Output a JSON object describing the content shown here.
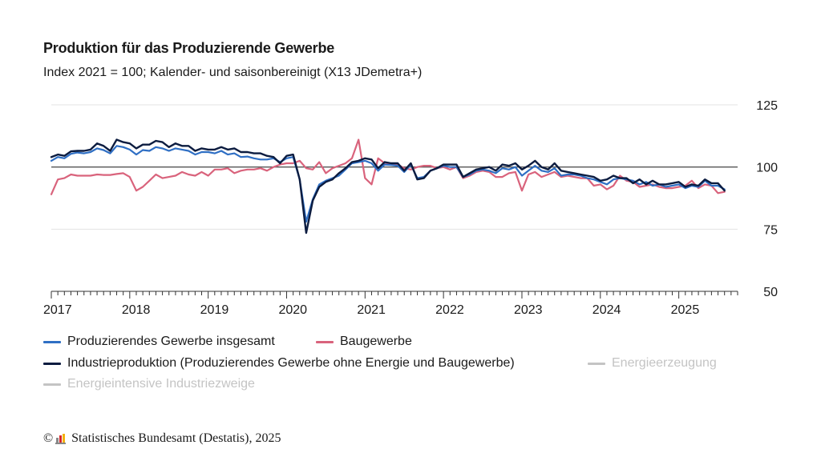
{
  "chart_data": {
    "type": "line",
    "title": "Produktion für das Produzierende Gewerbe",
    "subtitle": "Index 2021 = 100; Kalender- und saisonbereinigt (X13 JDemetra+)",
    "ylim": [
      50,
      125
    ],
    "yticks": [
      50,
      75,
      100,
      125
    ],
    "xticks": [
      "2017",
      "2018",
      "2019",
      "2020",
      "2021",
      "2022",
      "2023",
      "2024",
      "2025"
    ],
    "x_start": "2017-01",
    "reference_line": 100,
    "legend_position": "bottom",
    "series": [
      {
        "name": "Produzierendes Gewerbe insgesamt",
        "color": "#2f6fc4",
        "values": [
          102.5,
          104.0,
          103.5,
          105.3,
          105.8,
          105.5,
          106.0,
          107.5,
          106.8,
          105.5,
          108.5,
          108.0,
          107.0,
          105.0,
          106.8,
          106.5,
          108.0,
          107.5,
          106.5,
          107.5,
          107.0,
          106.5,
          105.0,
          106.0,
          106.0,
          105.5,
          106.5,
          105.0,
          105.5,
          104.0,
          104.2,
          103.5,
          103.0,
          103.0,
          103.5,
          102.0,
          103.5,
          104.0,
          95.0,
          78.0,
          87.0,
          93.0,
          94.5,
          95.5,
          96.5,
          99.0,
          101.5,
          102.0,
          102.5,
          101.5,
          98.5,
          101.0,
          100.8,
          100.5,
          98.0,
          101.0,
          95.5,
          96.0,
          98.5,
          99.5,
          100.5,
          100.0,
          100.0,
          96.0,
          97.0,
          98.5,
          99.0,
          98.5,
          97.5,
          99.5,
          99.0,
          100.0,
          96.5,
          98.5,
          100.5,
          98.5,
          98.0,
          99.5,
          96.5,
          97.0,
          97.0,
          96.5,
          95.5,
          95.0,
          94.0,
          93.0,
          95.0,
          95.5,
          95.0,
          94.5,
          93.0,
          94.0,
          92.5,
          93.0,
          92.0,
          92.5,
          93.0,
          91.5,
          92.5,
          92.0,
          94.5,
          92.5,
          92.5,
          91.0
        ]
      },
      {
        "name": "Baugewerbe",
        "color": "#d9637c",
        "values": [
          89.0,
          95.0,
          95.5,
          97.0,
          96.5,
          96.5,
          96.5,
          97.0,
          96.8,
          96.8,
          97.2,
          97.5,
          96.0,
          90.5,
          92.0,
          94.5,
          97.0,
          95.5,
          96.0,
          96.5,
          98.0,
          97.0,
          96.5,
          98.0,
          96.5,
          99.0,
          99.0,
          99.5,
          97.5,
          98.5,
          99.0,
          99.0,
          99.5,
          98.5,
          100.0,
          101.0,
          101.5,
          101.5,
          102.5,
          99.5,
          99.0,
          102.0,
          97.5,
          99.5,
          100.5,
          101.5,
          103.5,
          111.0,
          95.5,
          93.0,
          103.5,
          101.5,
          101.5,
          101.0,
          99.5,
          99.0,
          100.0,
          100.5,
          100.5,
          99.5,
          100.0,
          99.0,
          100.0,
          95.5,
          96.5,
          98.0,
          98.5,
          98.0,
          96.0,
          96.0,
          97.5,
          98.0,
          90.5,
          97.0,
          98.0,
          96.0,
          97.0,
          98.0,
          96.0,
          96.5,
          96.0,
          95.5,
          95.5,
          92.5,
          93.0,
          91.0,
          92.5,
          96.5,
          94.5,
          94.0,
          92.0,
          92.5,
          93.0,
          92.0,
          91.5,
          91.5,
          92.0,
          92.5,
          94.5,
          91.5,
          93.0,
          92.5,
          89.5,
          90.0
        ]
      },
      {
        "name": "Industrieproduktion (Produzierendes Gewerbe ohne Energie und Baugewerbe)",
        "color": "#0c1c40",
        "values": [
          104.0,
          105.0,
          104.5,
          106.3,
          106.5,
          106.5,
          107.0,
          109.5,
          108.5,
          106.5,
          111.0,
          110.0,
          109.5,
          107.5,
          109.0,
          109.0,
          110.5,
          110.0,
          108.0,
          109.5,
          108.5,
          108.5,
          106.5,
          107.5,
          107.0,
          107.0,
          108.0,
          107.0,
          107.5,
          106.0,
          106.0,
          105.5,
          105.5,
          104.5,
          104.0,
          101.5,
          104.5,
          105.0,
          95.0,
          73.5,
          86.5,
          92.0,
          94.0,
          95.0,
          97.5,
          99.5,
          102.0,
          102.5,
          103.5,
          103.0,
          99.5,
          102.0,
          101.5,
          101.5,
          98.5,
          101.5,
          95.0,
          95.5,
          98.5,
          99.5,
          101.0,
          101.0,
          101.0,
          96.0,
          97.5,
          99.0,
          99.5,
          100.0,
          98.5,
          101.0,
          100.5,
          101.5,
          99.0,
          100.5,
          102.5,
          100.0,
          99.0,
          101.5,
          98.5,
          98.0,
          97.5,
          97.0,
          96.5,
          96.0,
          94.5,
          95.0,
          96.5,
          95.5,
          95.5,
          93.5,
          95.0,
          93.0,
          94.5,
          93.0,
          93.0,
          93.5,
          94.0,
          92.0,
          93.0,
          92.5,
          95.0,
          93.5,
          93.5,
          90.5
        ]
      }
    ],
    "inactive_series": [
      {
        "name": "Energieerzeugung",
        "color": "#c4c4c4"
      },
      {
        "name": "Energieintensive Industriezweige",
        "color": "#c4c4c4"
      }
    ]
  },
  "legend": {
    "item1": "Produzierendes Gewerbe insgesamt",
    "item2": "Baugewerbe",
    "item3": "Industrieproduktion (Produzierendes Gewerbe ohne Energie und Baugewerbe)",
    "item4": "Energieerzeugung",
    "item5": "Energieintensive Industriezweige"
  },
  "footer": {
    "copyright": "©",
    "text": "Statistisches Bundesamt (Destatis), 2025",
    "logo_colors": [
      "#888888",
      "#d7262b",
      "#f3b10b"
    ]
  }
}
